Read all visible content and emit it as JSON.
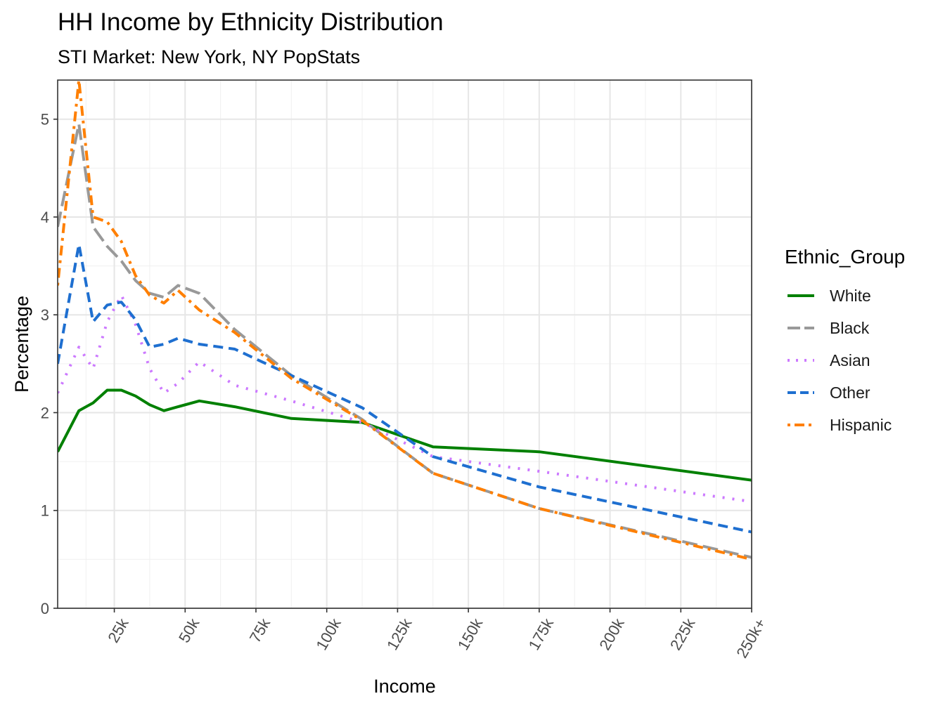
{
  "chart_data": {
    "type": "line",
    "title": "HH Income by Ethnicity Distribution",
    "subtitle": "STI Market: New York, NY PopStats",
    "xlabel": "Income",
    "ylabel": "Percentage",
    "xlim": [
      5,
      250
    ],
    "ylim": [
      0,
      5.4
    ],
    "x_ticks": [
      25,
      50,
      75,
      100,
      125,
      150,
      175,
      200,
      225,
      250
    ],
    "x_tick_labels": [
      "25k",
      "50k",
      "75k",
      "100k",
      "125k",
      "150k",
      "175k",
      "200k",
      "225k",
      "250k+"
    ],
    "y_ticks": [
      0,
      1,
      2,
      3,
      4,
      5
    ],
    "y_tick_labels": [
      "0",
      "1",
      "2",
      "3",
      "4",
      "5"
    ],
    "grid": true,
    "legend_title": "Ethnic_Group",
    "legend_position": "right",
    "series": [
      {
        "name": "White",
        "color": "#008000",
        "dash": "solid",
        "x": [
          5,
          12.5,
          17.5,
          22.5,
          27.5,
          32.5,
          37.5,
          42.5,
          47.5,
          55,
          67.5,
          87.5,
          112.5,
          137.5,
          175,
          250
        ],
        "values": [
          1.6,
          2.02,
          2.1,
          2.23,
          2.23,
          2.17,
          2.08,
          2.02,
          2.06,
          2.12,
          2.06,
          1.94,
          1.9,
          1.65,
          1.6,
          1.31
        ]
      },
      {
        "name": "Black",
        "color": "#999999",
        "dash": "longdash",
        "x": [
          5,
          12.5,
          17.5,
          22.5,
          27.5,
          32.5,
          37.5,
          42.5,
          47.5,
          55,
          67.5,
          87.5,
          112.5,
          137.5,
          175,
          250
        ],
        "values": [
          3.9,
          4.95,
          3.9,
          3.7,
          3.55,
          3.35,
          3.22,
          3.18,
          3.3,
          3.22,
          2.85,
          2.38,
          1.93,
          1.38,
          1.02,
          0.52
        ]
      },
      {
        "name": "Asian",
        "color": "#cc79ff",
        "dash": "dotted",
        "x": [
          5,
          12.5,
          17.5,
          22.5,
          27.5,
          32.5,
          37.5,
          42.5,
          47.5,
          55,
          67.5,
          87.5,
          112.5,
          137.5,
          175,
          250
        ],
        "values": [
          2.2,
          2.67,
          2.45,
          2.93,
          3.2,
          2.9,
          2.45,
          2.2,
          2.3,
          2.52,
          2.28,
          2.12,
          1.9,
          1.55,
          1.4,
          1.09
        ]
      },
      {
        "name": "Other",
        "color": "#1e6fd0",
        "dash": "dashed",
        "x": [
          5,
          12.5,
          17.5,
          22.5,
          27.5,
          32.5,
          37.5,
          42.5,
          47.5,
          55,
          67.5,
          87.5,
          112.5,
          137.5,
          175,
          250
        ],
        "values": [
          2.5,
          3.72,
          2.93,
          3.1,
          3.13,
          2.95,
          2.67,
          2.7,
          2.76,
          2.7,
          2.65,
          2.38,
          2.05,
          1.55,
          1.24,
          0.78
        ]
      },
      {
        "name": "Hispanic",
        "color": "#ff7f00",
        "dash": "dotdash",
        "x": [
          5,
          12.5,
          17.5,
          22.5,
          27.5,
          32.5,
          37.5,
          42.5,
          47.5,
          55,
          67.5,
          87.5,
          112.5,
          137.5,
          175,
          250
        ],
        "values": [
          3.3,
          5.4,
          4.0,
          3.95,
          3.75,
          3.4,
          3.2,
          3.12,
          3.25,
          3.05,
          2.82,
          2.35,
          1.92,
          1.38,
          1.02,
          0.5
        ]
      }
    ]
  }
}
